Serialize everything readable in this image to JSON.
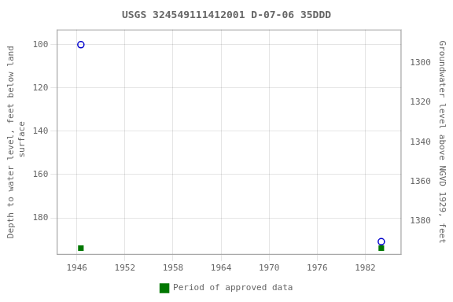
{
  "chart_data": {
    "type": "scatter",
    "title": "USGS 324549111412001 D-07-06 35DDD",
    "ylabel": "Depth to water level, feet below land\n surface",
    "y2label": "Groundwater level above NGVD 1929, feet",
    "xlim": [
      1943.5,
      1986.5
    ],
    "xticks": [
      1946,
      1952,
      1958,
      1964,
      1970,
      1976,
      1982
    ],
    "ylim": [
      197,
      93
    ],
    "yticks": [
      100,
      120,
      140,
      160,
      180
    ],
    "y2lim": [
      1397,
      1283
    ],
    "y2ticks": [
      1300,
      1320,
      1340,
      1360,
      1380
    ],
    "grid": true,
    "legend": "bottom",
    "series": [
      {
        "color": "#0000cc",
        "marker": "circle",
        "x": [
          1946.5,
          1984.0
        ],
        "values": [
          100,
          191
        ]
      },
      {
        "name": "Period of approved data",
        "color": "#007700",
        "marker": "square",
        "x": [
          1946.5,
          1984.0
        ],
        "values": [
          194,
          194
        ]
      }
    ]
  }
}
